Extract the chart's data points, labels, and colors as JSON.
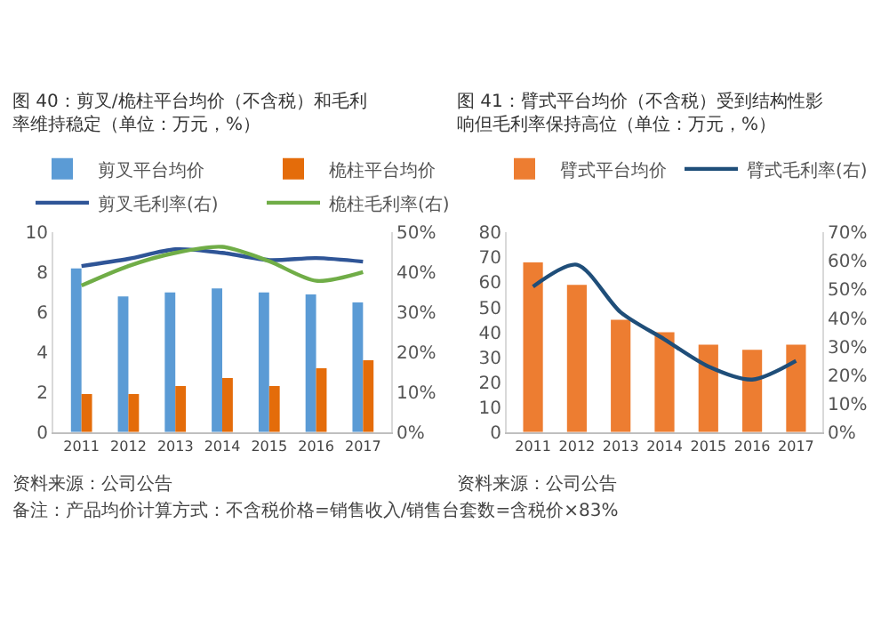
{
  "chart_data": [
    {
      "type": "bar",
      "title": "图 40：剪叉/桅柱平台均价（不含税）和毛利率维持稳定（单位：万元，%）",
      "categories": [
        "2011",
        "2012",
        "2013",
        "2014",
        "2015",
        "2016",
        "2017"
      ],
      "series": [
        {
          "name": "剪叉平台均价",
          "color": "#5b9bd5",
          "values": [
            8.2,
            6.8,
            7.0,
            7.2,
            7.0,
            6.9,
            6.5
          ]
        },
        {
          "name": "桅柱平台均价",
          "color": "#e46c0a",
          "values": [
            1.9,
            1.9,
            2.3,
            2.7,
            2.3,
            3.2,
            3.6
          ]
        },
        {
          "name": "剪叉毛利率(右)",
          "type": "line",
          "axis": "y2",
          "color": "#2f5597",
          "values": [
            41.6,
            43.4,
            45.8,
            44.9,
            43.1,
            43.6,
            42.7
          ]
        },
        {
          "name": "桅柱毛利率(右)",
          "type": "line",
          "axis": "y2",
          "color": "#70ad47",
          "values": [
            36.7,
            41.6,
            44.9,
            46.4,
            42.8,
            37.9,
            40.1
          ]
        }
      ],
      "ylim": [
        0,
        10
      ],
      "yticks": [
        0,
        2,
        4,
        6,
        8,
        10
      ],
      "y2lim": [
        0,
        50
      ],
      "y2ticks": [
        {
          "value": 0,
          "label": "0%"
        },
        {
          "value": 10,
          "label": "10%"
        },
        {
          "value": 20,
          "label": "20%"
        },
        {
          "value": 30,
          "label": "30%"
        },
        {
          "value": 40,
          "label": "40%"
        },
        {
          "value": 50,
          "label": "50%"
        }
      ],
      "legend": "top",
      "annotations": [
        "资料来源：公司公告",
        "备注：产品均价计算方式：不含税价格=销售收入/销售台套数=含税价×83%"
      ]
    },
    {
      "type": "bar",
      "title": "图 41：臂式平台均价（不含税）受到结构性影响但毛利率保持高位（单位：万元，%）",
      "categories": [
        "2011",
        "2012",
        "2013",
        "2014",
        "2015",
        "2016",
        "2017"
      ],
      "series": [
        {
          "name": "臂式平台均价",
          "color": "#ed7d31",
          "values": [
            68,
            59,
            45,
            40,
            35,
            33,
            35
          ]
        },
        {
          "name": "臂式毛利率(右)",
          "type": "line",
          "axis": "y2",
          "color": "#1f4e79",
          "values": [
            51,
            58.7,
            42,
            32.5,
            23,
            18.4,
            25
          ]
        }
      ],
      "ylim": [
        0,
        80
      ],
      "yticks": [
        0,
        10,
        20,
        30,
        40,
        50,
        60,
        70,
        80
      ],
      "y2lim": [
        0,
        70
      ],
      "y2ticks": [
        {
          "value": 0,
          "label": "0%"
        },
        {
          "value": 10,
          "label": "10%"
        },
        {
          "value": 20,
          "label": "20%"
        },
        {
          "value": 30,
          "label": "30%"
        },
        {
          "value": 40,
          "label": "40%"
        },
        {
          "value": 50,
          "label": "50%"
        },
        {
          "value": 60,
          "label": "60%"
        },
        {
          "value": 70,
          "label": "70%"
        }
      ],
      "legend": "top",
      "annotations": [
        "资料来源：公司公告"
      ]
    }
  ]
}
